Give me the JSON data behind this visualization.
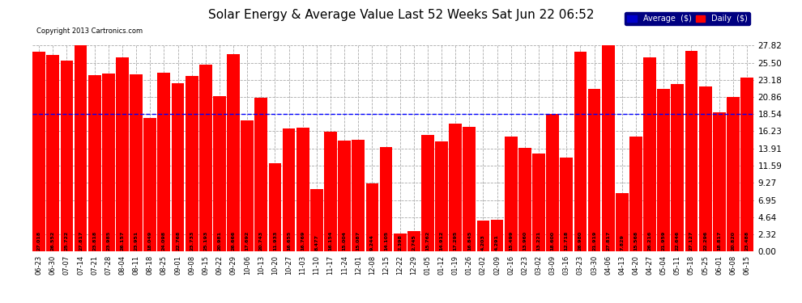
{
  "title": "Solar Energy & Average Value Last 52 Weeks Sat Jun 22 06:52",
  "copyright": "Copyright 2013 Cartronics.com",
  "average_line": 18.54,
  "bar_color": "#FF0000",
  "average_color": "#0000FF",
  "background_color": "#FFFFFF",
  "grid_color": "#AAAAAA",
  "ylim": [
    0,
    27.82
  ],
  "yticks": [
    0.0,
    2.32,
    4.64,
    6.95,
    9.27,
    11.59,
    13.91,
    16.23,
    18.54,
    20.86,
    23.18,
    25.5,
    27.82
  ],
  "legend_avg_color": "#0000CD",
  "legend_daily_color": "#FF0000",
  "categories": [
    "06-23",
    "06-30",
    "07-07",
    "07-14",
    "07-21",
    "07-28",
    "08-04",
    "08-11",
    "08-18",
    "08-25",
    "09-01",
    "09-08",
    "09-15",
    "09-22",
    "09-29",
    "10-06",
    "10-13",
    "10-20",
    "10-27",
    "11-03",
    "11-10",
    "11-17",
    "11-24",
    "12-01",
    "12-08",
    "12-15",
    "12-22",
    "12-29",
    "01-05",
    "01-12",
    "01-19",
    "01-26",
    "02-02",
    "02-09",
    "02-16",
    "02-23",
    "03-02",
    "03-09",
    "03-16",
    "03-23",
    "03-30",
    "04-06",
    "04-13",
    "04-20",
    "04-27",
    "05-04",
    "05-11",
    "05-18",
    "05-25",
    "06-01",
    "06-08",
    "06-15"
  ],
  "values": [
    27.018,
    26.552,
    25.722,
    27.817,
    23.818,
    23.985,
    26.157,
    23.951,
    18.049,
    24.098,
    22.768,
    23.733,
    25.193,
    20.981,
    26.666,
    17.692,
    20.743,
    11.933,
    16.655,
    16.769,
    8.477,
    16.154,
    15.004,
    15.087,
    9.244,
    14.105,
    2.398,
    2.745,
    15.762,
    14.912,
    17.295,
    16.845,
    4.203,
    4.291,
    15.499,
    13.96,
    13.221,
    18.6,
    12.718,
    26.98,
    21.919,
    27.817,
    7.829,
    15.568,
    26.216,
    21.959,
    22.646,
    27.127,
    22.296,
    18.817,
    20.82,
    23.488
  ],
  "value_label_fontsize": 4.5,
  "ytick_fontsize": 7.5,
  "xtick_fontsize": 6.0,
  "title_fontsize": 11
}
